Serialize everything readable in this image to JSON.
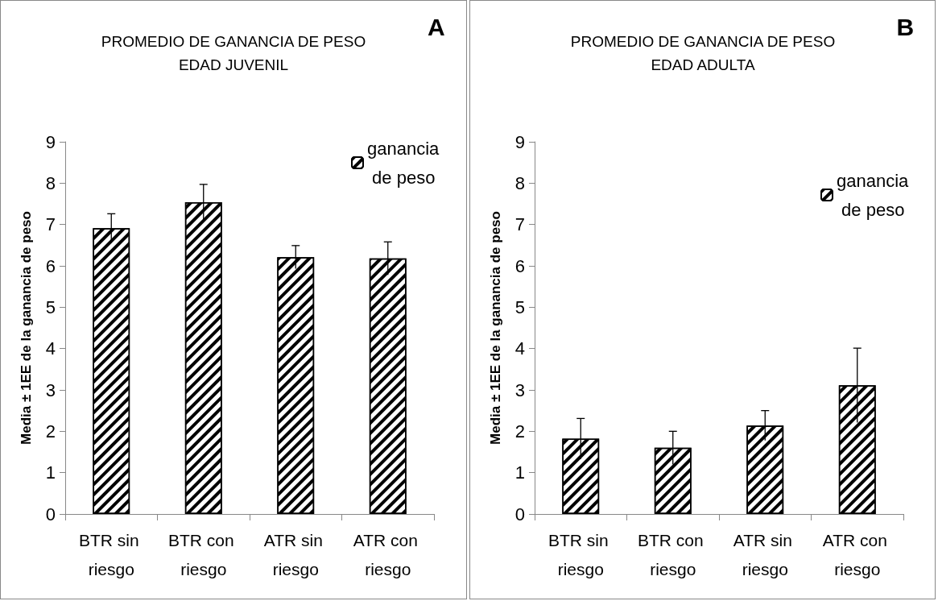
{
  "chart_data": [
    {
      "type": "bar",
      "title": "PROMEDIO DE GANANCIA DE PESO",
      "subtitle": "EDAD JUVENIL",
      "annotations": [
        "A"
      ],
      "ylabel": "Media ± 1EE de la ganancia de peso",
      "categories": [
        "BTR sin riesgo",
        "BTR con riesgo",
        "ATR sin riesgo",
        "ATR con riesgo"
      ],
      "series": [
        {
          "name": "ganancia de peso",
          "color": "#000000",
          "values": [
            6.91,
            7.54,
            6.21,
            6.18
          ],
          "errors": [
            0.35,
            0.43,
            0.28,
            0.4
          ]
        }
      ],
      "ylim": [
        0,
        9
      ],
      "yticks": [
        0,
        1,
        2,
        3,
        4,
        5,
        6,
        7,
        8,
        9
      ],
      "grid": false,
      "legend": "top right"
    },
    {
      "type": "bar",
      "title": "PROMEDIO DE GANANCIA DE PESO",
      "subtitle": "EDAD ADULTA",
      "annotations": [
        "B"
      ],
      "ylabel": "Media ± 1EE de la ganancia de peso",
      "categories": [
        "BTR sin riesgo",
        "BTR con riesgo",
        "ATR sin riesgo",
        "ATR con riesgo"
      ],
      "series": [
        {
          "name": "ganancia de peso",
          "color": "#000000",
          "values": [
            1.82,
            1.6,
            2.14,
            3.11
          ],
          "errors": [
            0.49,
            0.4,
            0.36,
            0.9
          ]
        }
      ],
      "ylim": [
        0,
        9
      ],
      "yticks": [
        0,
        1,
        2,
        3,
        4,
        5,
        6,
        7,
        8,
        9
      ],
      "grid": false,
      "legend": "top right"
    }
  ]
}
